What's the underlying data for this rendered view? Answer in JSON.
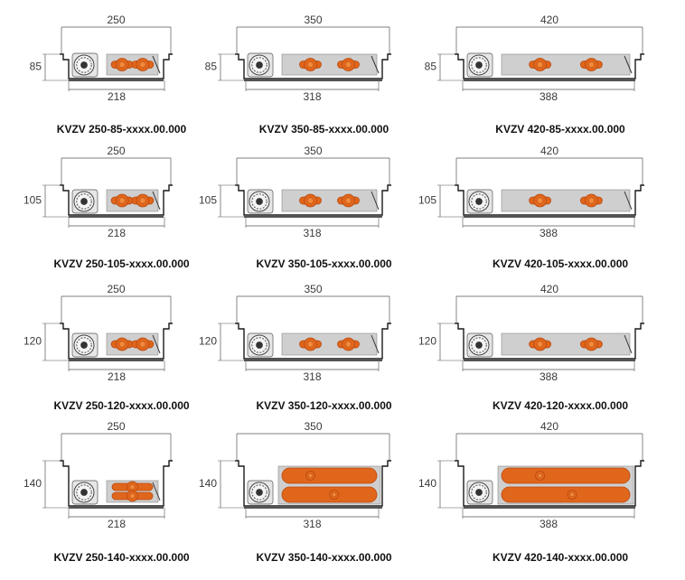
{
  "rows": [
    {
      "height": "85",
      "items": [
        {
          "model": "KVZV 250-85-xxxx.00.000",
          "width_outer": "250",
          "width_inner": "218",
          "size": "250"
        },
        {
          "model": "KVZV 350-85-xxxx.00.000",
          "width_outer": "350",
          "width_inner": "318",
          "size": "350"
        },
        {
          "model": "KVZV 420-85-xxxx.00.000",
          "width_outer": "420",
          "width_inner": "388",
          "size": "420"
        }
      ]
    },
    {
      "height": "105",
      "items": [
        {
          "model": "KVZV 250-105-xxxx.00.000",
          "width_outer": "250",
          "width_inner": "218",
          "size": "250"
        },
        {
          "model": "KVZV 350-105-xxxx.00.000",
          "width_outer": "350",
          "width_inner": "318",
          "size": "350"
        },
        {
          "model": "KVZV 420-105-xxxx.00.000",
          "width_outer": "420",
          "width_inner": "388",
          "size": "420"
        }
      ]
    },
    {
      "height": "120",
      "items": [
        {
          "model": "KVZV 250-120-xxxx.00.000",
          "width_outer": "250",
          "width_inner": "218",
          "size": "250"
        },
        {
          "model": "KVZV 350-120-xxxx.00.000",
          "width_outer": "350",
          "width_inner": "318",
          "size": "350"
        },
        {
          "model": "KVZV 420-120-xxxx.00.000",
          "width_outer": "420",
          "width_inner": "388",
          "size": "420"
        }
      ]
    },
    {
      "height": "140",
      "items": [
        {
          "model": "KVZV 250-140-xxxx.00.000",
          "width_outer": "250",
          "width_inner": "218",
          "size": "250"
        },
        {
          "model": "KVZV 350-140-xxxx.00.000",
          "width_outer": "350",
          "width_inner": "318",
          "size": "350"
        },
        {
          "model": "KVZV 420-140-xxxx.00.000",
          "width_outer": "420",
          "width_inner": "388",
          "size": "420"
        }
      ]
    }
  ],
  "colors": {
    "outline": "#1a1a1a",
    "dimension": "#555555",
    "plate": "#cfcfcf",
    "pipe": "#e0661c",
    "pipe_dark": "#b94a0f",
    "fan": "#9a9a9a"
  }
}
